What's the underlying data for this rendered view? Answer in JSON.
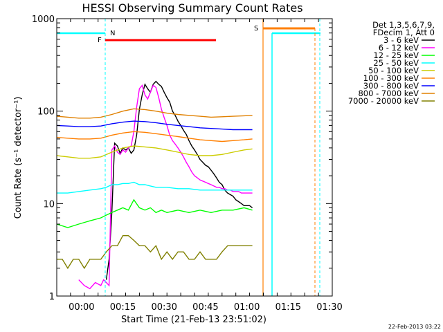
{
  "chart_data": {
    "type": "line",
    "title": "HESSI Observing Summary Count Rates",
    "xlabel": "Start Time (21-Feb-13 23:51:02)",
    "ylabel": "Count Rate (s⁻¹ detector⁻¹)",
    "footer": "22-Feb-2013 03:22",
    "x_unit": "minutes since 23:51:02",
    "xlim": [
      0,
      100
    ],
    "ylim": [
      1,
      1000
    ],
    "y_scale": "log",
    "grid": false,
    "legend_placement": "top-right outside plot",
    "legend_header": [
      "Det 1,3,5,6,7,9,",
      "FDecim 1, Att 0"
    ],
    "x_ticks": [
      {
        "value": 9,
        "label": "00:00"
      },
      {
        "value": 24,
        "label": "00:15"
      },
      {
        "value": 39,
        "label": "00:30"
      },
      {
        "value": 54,
        "label": "00:45"
      },
      {
        "value": 69,
        "label": "01:00"
      },
      {
        "value": 84,
        "label": "01:15"
      },
      {
        "value": 99,
        "label": "01:30"
      }
    ],
    "y_ticks": [
      {
        "value": 1,
        "label": "1"
      },
      {
        "value": 10,
        "label": "10"
      },
      {
        "value": 100,
        "label": "100"
      },
      {
        "value": 1000,
        "label": "1000"
      }
    ],
    "series": [
      {
        "name": "3 - 6 keV",
        "color": "#000000",
        "x": [
          18,
          19,
          20,
          21,
          22,
          23,
          24,
          25,
          26,
          27,
          28,
          29,
          30,
          31,
          32,
          33,
          34,
          35,
          36,
          37,
          38,
          39,
          40,
          41,
          42,
          43,
          44,
          45,
          46,
          47,
          48,
          49,
          50,
          51,
          52,
          53,
          54,
          55,
          56,
          57,
          58,
          59,
          60,
          61,
          62,
          63,
          64,
          65,
          66,
          67,
          68,
          69,
          70,
          71
        ],
        "y": [
          1.5,
          2.5,
          8,
          45,
          42,
          35,
          40,
          38,
          40,
          35,
          38,
          55,
          105,
          150,
          195,
          175,
          160,
          195,
          210,
          195,
          185,
          160,
          140,
          125,
          100,
          90,
          78,
          70,
          62,
          56,
          48,
          42,
          38,
          34,
          30,
          28,
          26,
          25,
          23,
          21,
          19,
          17,
          16,
          14,
          13,
          12.5,
          12,
          11,
          10.5,
          10,
          9.5,
          9.5,
          9.5,
          9
        ]
      },
      {
        "name": "6 - 12 keV",
        "color": "#ff00ff",
        "x": [
          8,
          10,
          12,
          14,
          16,
          17,
          18,
          19,
          20,
          21,
          22,
          23,
          24,
          25,
          26,
          27,
          28,
          29,
          30,
          31,
          32,
          33,
          34,
          35,
          36,
          37,
          38,
          39,
          40,
          41,
          42,
          43,
          44,
          45,
          46,
          47,
          48,
          49,
          50,
          51,
          52,
          53,
          54,
          55,
          56,
          57,
          58,
          59,
          60,
          61,
          62,
          63,
          64,
          65,
          66,
          67,
          68,
          69,
          70,
          71
        ],
        "y": [
          1.5,
          1.3,
          1.2,
          1.4,
          1.3,
          1.5,
          1.4,
          1.3,
          38,
          42,
          36,
          34,
          38,
          36,
          40,
          42,
          60,
          110,
          175,
          190,
          150,
          135,
          160,
          190,
          180,
          140,
          105,
          85,
          70,
          55,
          48,
          44,
          40,
          36,
          32,
          28,
          25,
          22,
          20,
          19,
          18,
          17.5,
          17,
          16.5,
          16,
          15.5,
          15,
          15,
          14.5,
          14.5,
          14,
          14,
          13.5,
          13.5,
          13.5,
          13,
          13,
          13,
          13,
          13
        ]
      },
      {
        "name": "12 - 25 keV",
        "color": "#00ff00",
        "x": [
          0,
          4,
          8,
          12,
          16,
          18,
          20,
          22,
          24,
          26,
          28,
          30,
          32,
          34,
          36,
          38,
          40,
          44,
          48,
          52,
          56,
          60,
          64,
          68,
          71
        ],
        "y": [
          6,
          5.5,
          6,
          6.5,
          7,
          7.5,
          8,
          8.5,
          9,
          8.5,
          11,
          9,
          8.5,
          9,
          8,
          8.5,
          8,
          8.5,
          8,
          8.5,
          8,
          8.5,
          8.5,
          9,
          8.5
        ]
      },
      {
        "name": "25 - 50 keV",
        "color": "#00ffff",
        "x": [
          0,
          4,
          8,
          12,
          16,
          18,
          20,
          22,
          24,
          26,
          28,
          30,
          32,
          34,
          36,
          40,
          44,
          48,
          52,
          56,
          60,
          64,
          68,
          71
        ],
        "y": [
          13,
          13,
          13.5,
          14,
          14.5,
          15,
          16,
          16,
          16.5,
          16.5,
          17,
          16,
          16,
          15.5,
          15,
          15,
          14.5,
          14.5,
          14,
          14,
          14,
          14,
          14,
          14
        ]
      },
      {
        "name": "50 - 100 keV",
        "color": "#cccc00",
        "x": [
          0,
          4,
          8,
          12,
          16,
          20,
          24,
          28,
          32,
          36,
          40,
          44,
          48,
          52,
          56,
          60,
          64,
          68,
          71
        ],
        "y": [
          33,
          32,
          31,
          31,
          32,
          36,
          40,
          42,
          41,
          40,
          38,
          36,
          34,
          33,
          33,
          34,
          36,
          38,
          39
        ]
      },
      {
        "name": "100 - 300 keV",
        "color": "#ff7f00",
        "x": [
          0,
          4,
          8,
          12,
          16,
          20,
          24,
          28,
          32,
          36,
          40,
          44,
          48,
          52,
          56,
          60,
          64,
          68,
          71
        ],
        "y": [
          52,
          51,
          50,
          50,
          51,
          55,
          58,
          60,
          59,
          57,
          55,
          53,
          51,
          49,
          48,
          47,
          48,
          49,
          50
        ]
      },
      {
        "name": "300 - 800 keV",
        "color": "#0000ff",
        "x": [
          0,
          4,
          8,
          12,
          16,
          20,
          24,
          28,
          32,
          36,
          40,
          44,
          48,
          52,
          56,
          60,
          64,
          68,
          71
        ],
        "y": [
          70,
          69,
          68,
          68,
          69,
          73,
          76,
          78,
          77,
          75,
          72,
          70,
          68,
          66,
          65,
          64,
          63,
          63,
          63
        ]
      },
      {
        "name": "800 - 7000 keV",
        "color": "#e08000",
        "x": [
          0,
          4,
          8,
          12,
          16,
          20,
          24,
          28,
          32,
          36,
          40,
          44,
          48,
          52,
          56,
          60,
          64,
          68,
          71
        ],
        "y": [
          88,
          86,
          84,
          84,
          86,
          92,
          100,
          106,
          104,
          100,
          95,
          92,
          90,
          88,
          86,
          87,
          88,
          89,
          90
        ]
      },
      {
        "name": "7000 - 20000 keV",
        "color": "#808000",
        "x": [
          0,
          2,
          4,
          6,
          8,
          10,
          12,
          14,
          16,
          18,
          20,
          22,
          24,
          26,
          28,
          30,
          32,
          34,
          36,
          38,
          40,
          42,
          44,
          46,
          48,
          50,
          52,
          54,
          56,
          58,
          60,
          62,
          64,
          66,
          68,
          70,
          71
        ],
        "y": [
          2.5,
          2.5,
          2.0,
          2.5,
          2.5,
          2.0,
          2.5,
          2.5,
          2.5,
          3.0,
          3.5,
          3.5,
          4.5,
          4.5,
          4.0,
          3.5,
          3.5,
          3.0,
          3.5,
          2.5,
          3.0,
          2.5,
          3.0,
          3.0,
          2.5,
          2.5,
          3.0,
          2.5,
          2.5,
          2.5,
          3.0,
          3.5,
          3.5,
          3.5,
          3.5,
          3.5,
          3.5
        ]
      }
    ],
    "markers": {
      "night_label": "N",
      "flare_label": "F",
      "saa_label": "S",
      "night_bar_color": "#00ffff",
      "flare_bar_color": "#ff0000",
      "saa_bar_color": "#ff7f00"
    }
  }
}
